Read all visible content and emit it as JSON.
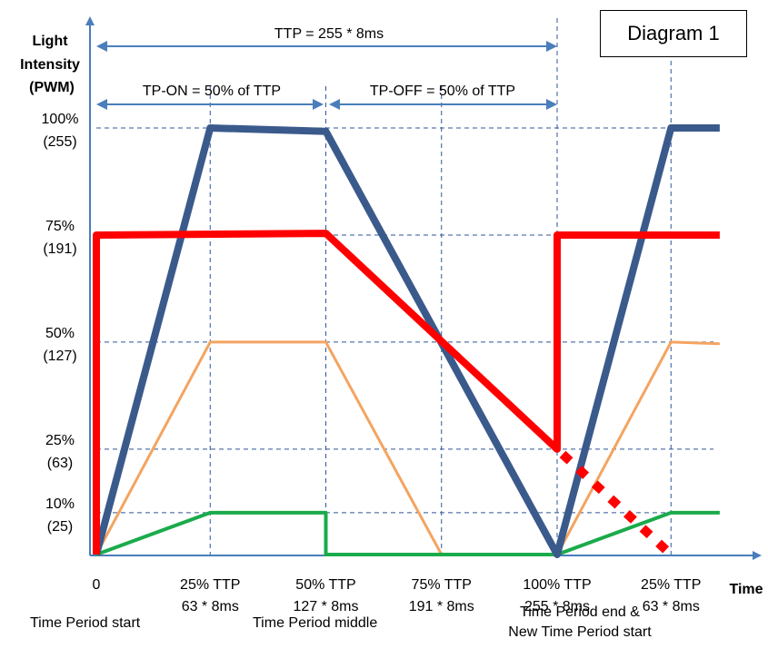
{
  "title": "Diagram 1",
  "y_axis_label": [
    "Light",
    "Intensity",
    "(PWM)"
  ],
  "x_axis_label": "Time",
  "y_ticks": [
    {
      "pct": "100%",
      "pwm": "(255)",
      "value": 255
    },
    {
      "pct": "75%",
      "pwm": "(191)",
      "value": 191
    },
    {
      "pct": "50%",
      "pwm": "(127)",
      "value": 127
    },
    {
      "pct": "25%",
      "pwm": "(63)",
      "value": 63
    },
    {
      "pct": "10%",
      "pwm": "(25)",
      "value": 25
    }
  ],
  "x_ticks": [
    {
      "line1": "0",
      "line2": "",
      "t": 0
    },
    {
      "line1": "25% TTP",
      "line2": "63 * 8ms",
      "t": 63
    },
    {
      "line1": "50% TTP",
      "line2": "127 * 8ms",
      "t": 127
    },
    {
      "line1": "75% TTP",
      "line2": "191 * 8ms",
      "t": 191
    },
    {
      "line1": "100% TTP",
      "line2": "255 * 8ms",
      "t": 255
    },
    {
      "line1": "25% TTP",
      "line2": "63 * 8ms",
      "t": 318
    }
  ],
  "spans": {
    "ttp": "TTP = 255 * 8ms",
    "tp_on": "TP-ON = 50% of TTP",
    "tp_off": "TP-OFF = 50% of TTP"
  },
  "captions": {
    "start": "Time Period start",
    "middle": "Time Period middle",
    "end_line1": "Time Period end &",
    "end_line2": "New Time Period start"
  },
  "colors": {
    "axis": "#4a7ebb",
    "grid": "#2f5597",
    "blue": "#3b5a8c",
    "red": "#ff0000",
    "orange": "#f4a460",
    "green": "#1aab4b"
  },
  "chart_data": {
    "type": "line",
    "title": "Diagram 1",
    "xlabel": "Time",
    "ylabel": "Light Intensity (PWM)",
    "ylim": [
      0,
      255
    ],
    "series": [
      {
        "color": "blue",
        "points": [
          [
            0,
            0
          ],
          [
            63,
            255
          ],
          [
            127,
            253
          ],
          [
            255,
            0
          ],
          [
            318,
            255
          ],
          [
            345,
            255
          ]
        ]
      },
      {
        "color": "red",
        "points": [
          [
            0,
            0
          ],
          [
            0,
            191
          ],
          [
            127,
            192
          ],
          [
            255,
            63
          ],
          [
            255,
            191
          ],
          [
            345,
            191
          ]
        ]
      },
      {
        "color": "red",
        "dashed": true,
        "points": [
          [
            258,
            60
          ],
          [
            318,
            0
          ]
        ]
      },
      {
        "color": "orange",
        "points": [
          [
            0,
            0
          ],
          [
            63,
            127
          ],
          [
            127,
            127
          ],
          [
            191,
            0
          ],
          [
            255,
            0
          ],
          [
            318,
            127
          ],
          [
            345,
            126
          ]
        ]
      },
      {
        "color": "green",
        "points": [
          [
            0,
            0
          ],
          [
            63,
            25
          ],
          [
            127,
            25
          ],
          [
            127,
            0
          ],
          [
            255,
            0
          ],
          [
            318,
            25
          ],
          [
            345,
            25
          ]
        ]
      }
    ]
  }
}
